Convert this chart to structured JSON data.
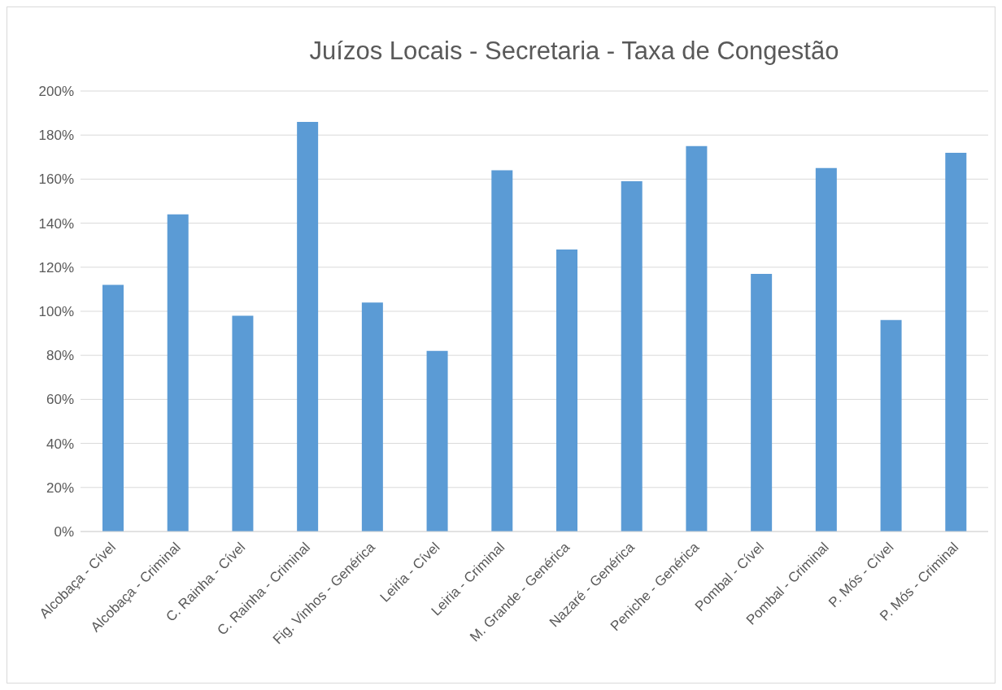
{
  "chart_data": {
    "type": "bar",
    "title": "Juízos Locais - Secretaria - Taxa de Congestão",
    "categories": [
      "Alcobaça - Cível",
      "Alcobaça - Criminal",
      "C. Rainha - Cível",
      "C. Rainha - Criminal",
      "Fig. Vinhos - Genérica",
      "Leiria - Cível",
      "Leiria - Criminal",
      "M. Grande - Genérica",
      "Nazaré - Genérica",
      "Peniche - Genérica",
      "Pombal - Cível",
      "Pombal - Criminal",
      "P. Mós - Cível",
      "P. Mós - Criminal"
    ],
    "values": [
      112,
      144,
      98,
      186,
      104,
      82,
      164,
      128,
      159,
      175,
      117,
      165,
      96,
      172
    ],
    "color": "#5b9bd5",
    "ylim": [
      0,
      200
    ],
    "yticks": [
      {
        "value": 0,
        "label": "0%"
      },
      {
        "value": 20,
        "label": "20%"
      },
      {
        "value": 40,
        "label": "40%"
      },
      {
        "value": 60,
        "label": "60%"
      },
      {
        "value": 80,
        "label": "80%"
      },
      {
        "value": 100,
        "label": "100%"
      },
      {
        "value": 120,
        "label": "120%"
      },
      {
        "value": 140,
        "label": "140%"
      },
      {
        "value": 160,
        "label": "160%"
      },
      {
        "value": 180,
        "label": "180%"
      },
      {
        "value": 200,
        "label": "200%"
      }
    ],
    "grid": "y"
  }
}
